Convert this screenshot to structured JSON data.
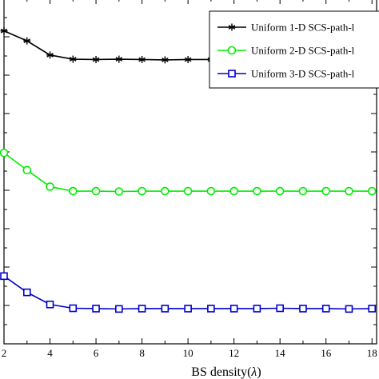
{
  "chart_data": {
    "type": "line",
    "xlabel": "BS density(",
    "xlabel_symbol": "λ",
    "xlabel_close": ")",
    "x": [
      2,
      3,
      4,
      5,
      6,
      7,
      8,
      9,
      10,
      11,
      12,
      13,
      14,
      15,
      16,
      17,
      18
    ],
    "xlim": [
      2,
      18.2
    ],
    "x_ticks": [
      2,
      4,
      6,
      8,
      10,
      12,
      14,
      16,
      18
    ],
    "x_tick_labels": [
      "2",
      "4",
      "6",
      "8",
      "10",
      "12",
      "14",
      "16",
      "18"
    ],
    "ylim": [
      0,
      1
    ],
    "y_minor_ticks": 18,
    "grid": false,
    "legend_position": "top-right",
    "series": [
      {
        "name": "Uniform 1-D SCS-path-l",
        "color": "#000000",
        "marker": "star",
        "values": [
          0.906,
          0.877,
          0.836,
          0.824,
          0.823,
          0.824,
          0.823,
          0.822,
          0.823,
          0.823,
          0.822,
          0.823,
          0.822,
          0.824,
          0.823,
          0.822,
          0.825
        ]
      },
      {
        "name": "Uniform 2-D SCS-path-l",
        "color": "#00ee00",
        "marker": "circle",
        "values": [
          0.553,
          0.503,
          0.455,
          0.442,
          0.442,
          0.441,
          0.442,
          0.442,
          0.442,
          0.442,
          0.442,
          0.442,
          0.442,
          0.442,
          0.442,
          0.442,
          0.442
        ]
      },
      {
        "name": "Uniform 3-D SCS-path-l",
        "color": "#0000cc",
        "marker": "square",
        "values": [
          0.196,
          0.149,
          0.114,
          0.103,
          0.102,
          0.101,
          0.102,
          0.102,
          0.102,
          0.102,
          0.102,
          0.102,
          0.103,
          0.102,
          0.102,
          0.101,
          0.102
        ]
      }
    ]
  }
}
